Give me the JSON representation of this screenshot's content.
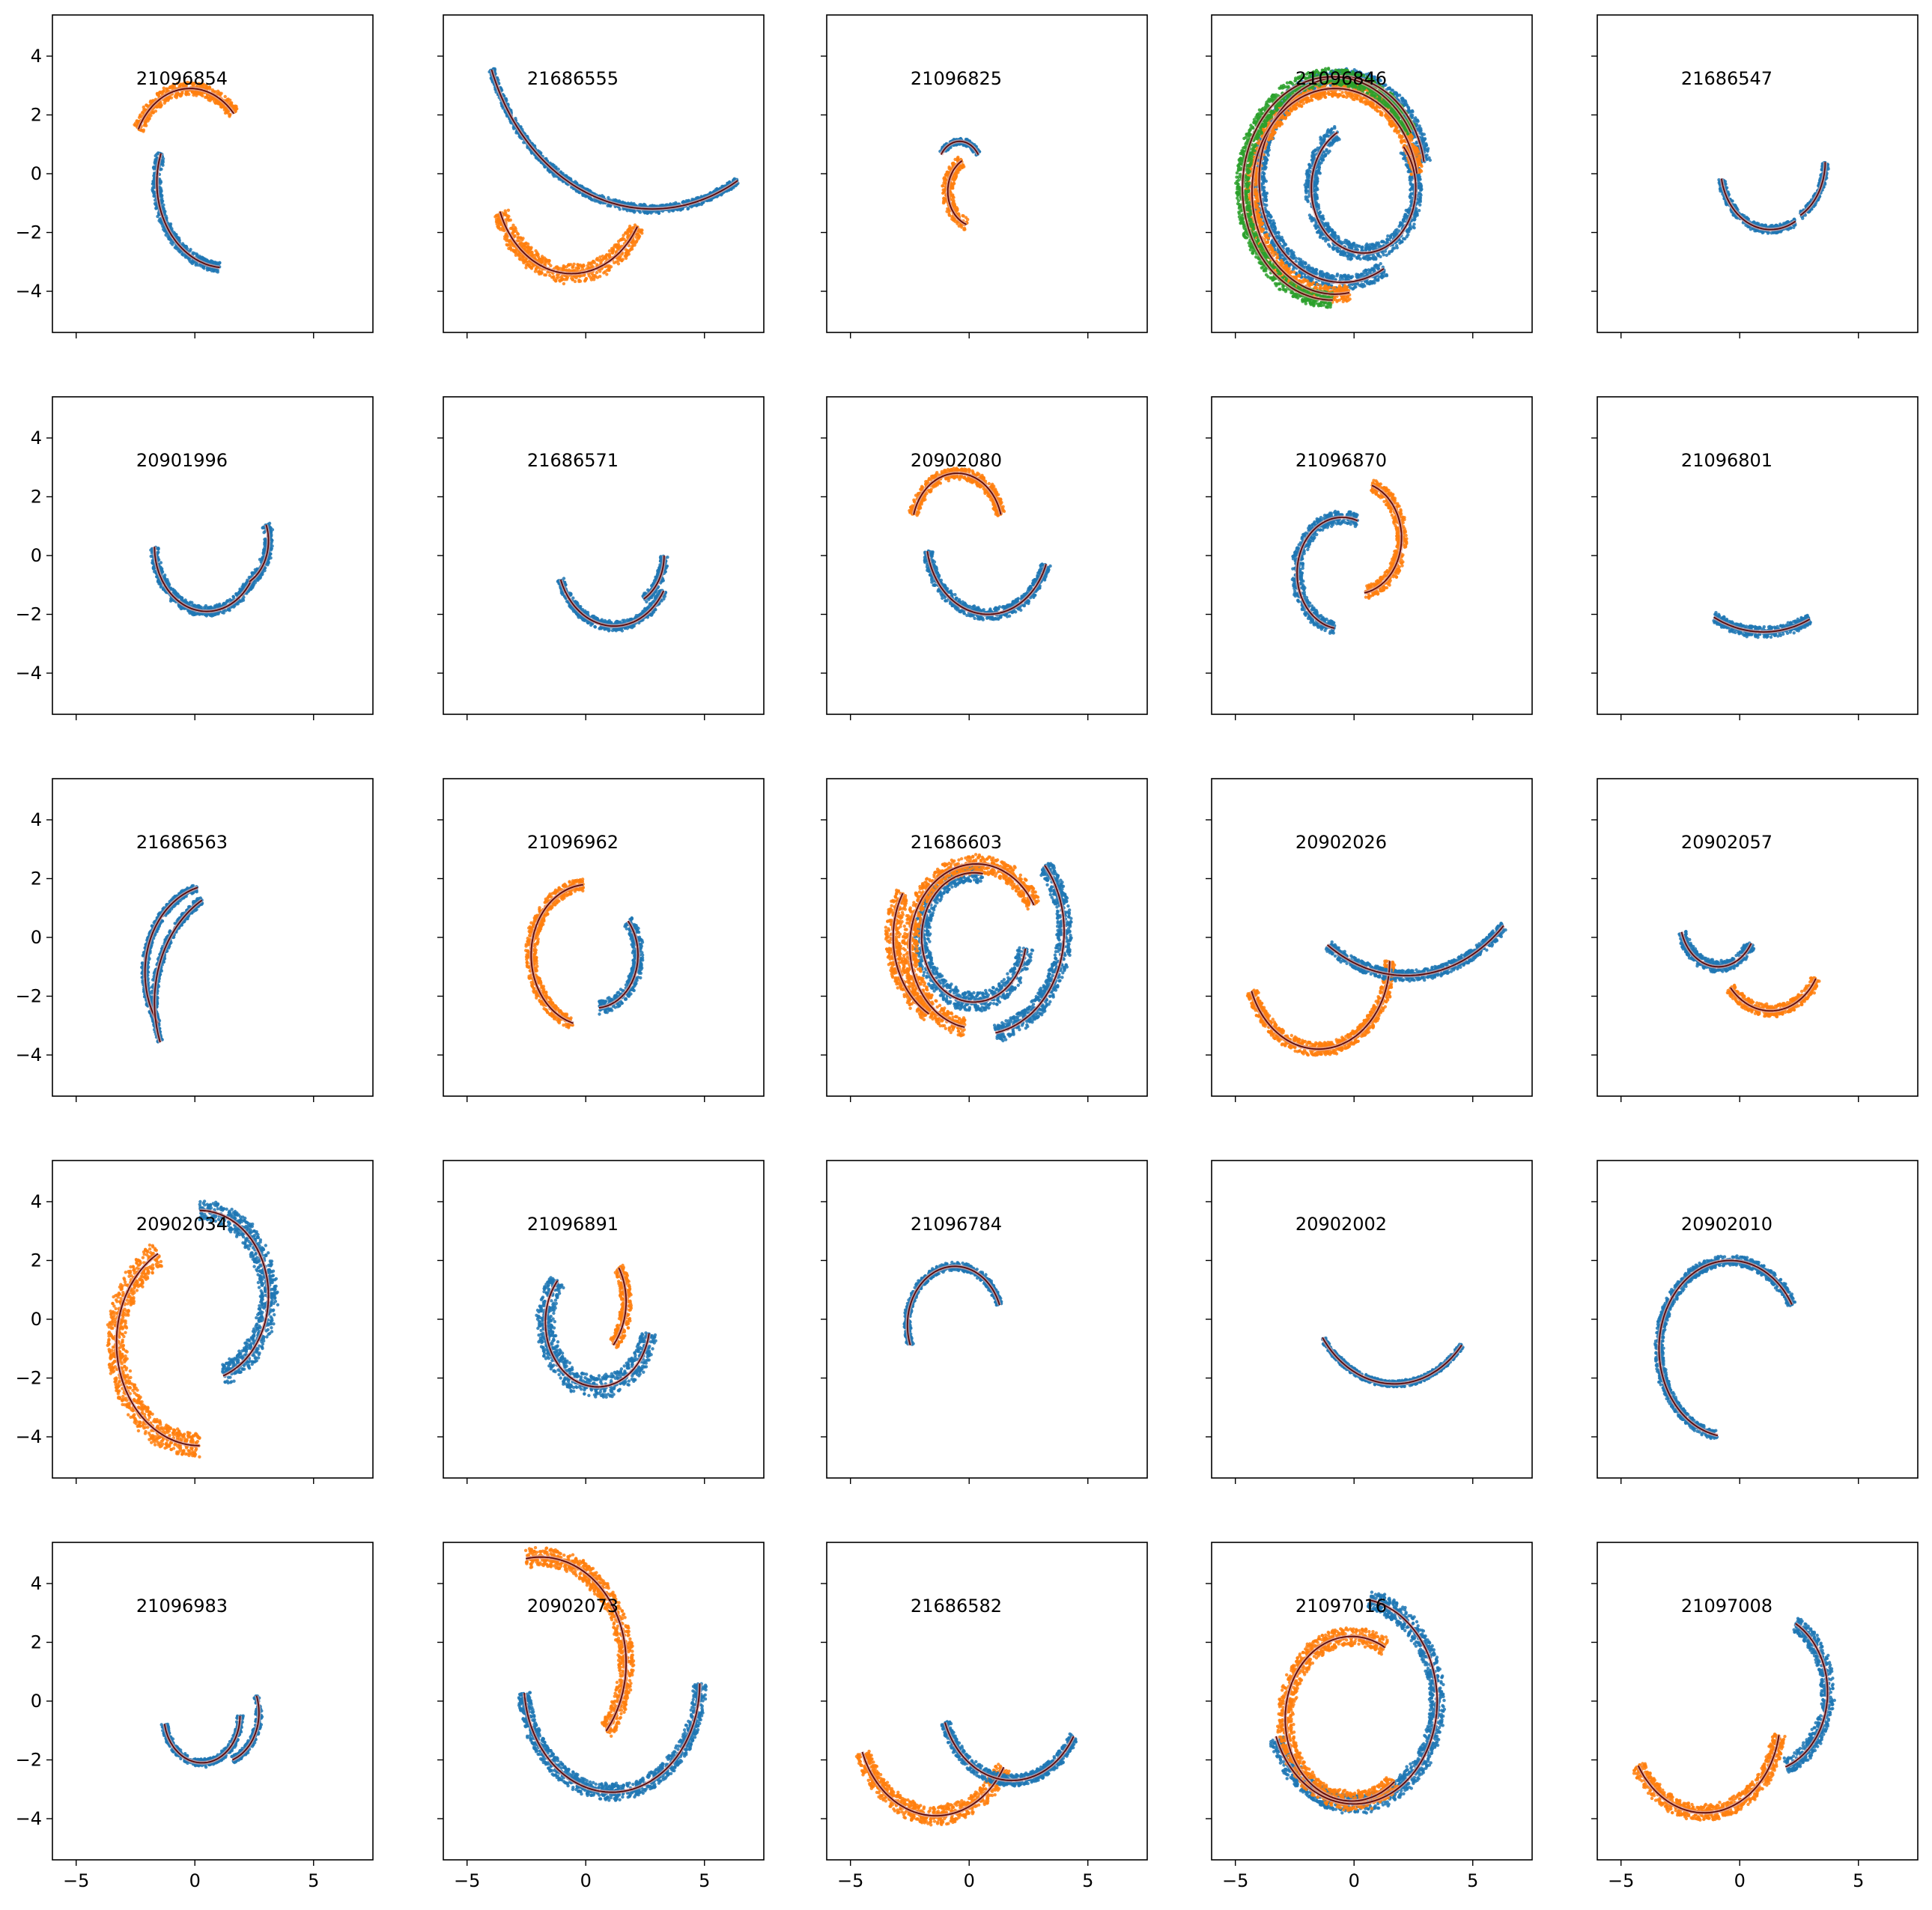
{
  "figure": {
    "layout": "5x5 grid of small-multiple scatter panels with shared axes",
    "colors": {
      "series1": "#1f77b4",
      "series2": "#ff7f0e",
      "series3": "#2ca02c",
      "fit": "#5c0a0a",
      "fit_band": "#d9a5a5"
    }
  },
  "chart_data": {
    "type": "scatter",
    "sharex": true,
    "sharey": true,
    "xlim": [
      -6.0,
      7.5
    ],
    "ylim": [
      -5.4,
      5.4
    ],
    "xticks": [
      -5,
      0,
      5
    ],
    "yticks": [
      -4,
      -2,
      0,
      2,
      4
    ],
    "xtick_labels": [
      "−5",
      "0",
      "5"
    ],
    "ytick_labels": [
      "−4",
      "−2",
      "0",
      "2",
      "4"
    ],
    "grid": false,
    "legend": "none",
    "panels": [
      {
        "title": "21096854",
        "arms": [
          {
            "s": 2,
            "cx": -0.2,
            "cy": 0.5,
            "r": 2.4,
            "a0": 155,
            "a1": 40,
            "t": 0.25
          },
          {
            "s": 1,
            "cx": 1.3,
            "cy": -0.3,
            "r": 2.9,
            "a0": 160,
            "a1": 265,
            "t": 0.2
          }
        ]
      },
      {
        "title": "21686555",
        "arms": [
          {
            "s": 2,
            "cx": -0.6,
            "cy": -0.2,
            "r": 3.2,
            "a0": 200,
            "a1": 330,
            "t": 0.35
          },
          {
            "s": 1,
            "cx": 2.8,
            "cy": 6.0,
            "r": 7.2,
            "a0": 200,
            "a1": 300,
            "t": 0.15
          }
        ]
      },
      {
        "title": "21096825",
        "arms": [
          {
            "s": 1,
            "cx": -0.4,
            "cy": 0.2,
            "r": 0.9,
            "a0": 150,
            "a1": 30,
            "t": 0.12
          },
          {
            "s": 2,
            "cx": 0.3,
            "cy": -0.6,
            "r": 1.2,
            "a0": 120,
            "a1": 250,
            "t": 0.25
          }
        ]
      },
      {
        "title": "21096846",
        "arms": [
          {
            "s": 1,
            "cx": 0.4,
            "cy": -0.5,
            "r": 2.2,
            "a0": 120,
            "a1": 400,
            "t": 0.3
          },
          {
            "s": 1,
            "cx": -0.5,
            "cy": -0.2,
            "r": 3.5,
            "a0": 10,
            "a1": 300,
            "t": 0.3
          },
          {
            "s": 2,
            "cx": -0.8,
            "cy": -0.6,
            "r": 3.5,
            "a0": 10,
            "a1": 280,
            "t": 0.3
          },
          {
            "s": 3,
            "cx": -0.9,
            "cy": -0.5,
            "r": 3.8,
            "a0": 30,
            "a1": 270,
            "t": 0.3
          }
        ]
      },
      {
        "title": "21686547",
        "arms": [
          {
            "s": 1,
            "cx": 1.3,
            "cy": 0.2,
            "r": 2.1,
            "a0": 190,
            "a1": 300,
            "t": 0.15
          },
          {
            "s": 1,
            "cx": 1.5,
            "cy": 0.4,
            "r": 2.1,
            "a0": 300,
            "a1": 360,
            "t": 0.15
          }
        ]
      },
      {
        "title": "20901996",
        "arms": [
          {
            "s": 1,
            "cx": 0.5,
            "cy": 0.3,
            "r": 2.2,
            "a0": 180,
            "a1": 330,
            "t": 0.2
          },
          {
            "s": 1,
            "cx": 1.5,
            "cy": 0.5,
            "r": 1.6,
            "a0": 300,
            "a1": 380,
            "t": 0.2
          }
        ]
      },
      {
        "title": "21686571",
        "arms": [
          {
            "s": 1,
            "cx": 1.2,
            "cy": 0.0,
            "r": 2.4,
            "a0": 200,
            "a1": 330,
            "t": 0.18
          },
          {
            "s": 1,
            "cx": 1.6,
            "cy": 0.0,
            "r": 1.7,
            "a0": 300,
            "a1": 360,
            "t": 0.18
          }
        ]
      },
      {
        "title": "20902080",
        "arms": [
          {
            "s": 2,
            "cx": -0.5,
            "cy": 0.9,
            "r": 1.9,
            "a0": 165,
            "a1": 15,
            "t": 0.22
          },
          {
            "s": 1,
            "cx": 0.8,
            "cy": 0.6,
            "r": 2.6,
            "a0": 190,
            "a1": 340,
            "t": 0.22
          }
        ]
      },
      {
        "title": "21096870",
        "arms": [
          {
            "s": 1,
            "cx": -0.5,
            "cy": -0.6,
            "r": 1.9,
            "a0": 70,
            "a1": 260,
            "t": 0.25
          },
          {
            "s": 2,
            "cx": 0.1,
            "cy": 0.6,
            "r": 1.9,
            "a0": 70,
            "a1": -80,
            "t": 0.25
          }
        ]
      },
      {
        "title": "21096801",
        "arms": [
          {
            "s": 1,
            "cx": 1.0,
            "cy": 2.0,
            "r": 4.6,
            "a0": 243,
            "a1": 295,
            "t": 0.2
          }
        ]
      },
      {
        "title": "21686563",
        "arms": [
          {
            "s": 1,
            "cx": 0.9,
            "cy": -1.2,
            "r": 3.0,
            "a0": 105,
            "a1": 215,
            "t": 0.15
          },
          {
            "s": 1,
            "cx": 2.3,
            "cy": -2.2,
            "r": 4.0,
            "a0": 120,
            "a1": 200,
            "t": 0.15
          }
        ]
      },
      {
        "title": "21096962",
        "arms": [
          {
            "s": 2,
            "cx": 0.1,
            "cy": -0.6,
            "r": 2.4,
            "a0": 95,
            "a1": 255,
            "t": 0.25
          },
          {
            "s": 1,
            "cx": 0.4,
            "cy": -0.6,
            "r": 1.8,
            "a0": 275,
            "a1": 400,
            "t": 0.25
          }
        ]
      },
      {
        "title": "21686603",
        "arms": [
          {
            "s": 1,
            "cx": 0.2,
            "cy": 0.0,
            "r": 2.2,
            "a0": 80,
            "a1": 350,
            "t": 0.35
          },
          {
            "s": 1,
            "cx": 0.5,
            "cy": 0.2,
            "r": 3.5,
            "a0": 280,
            "a1": 400,
            "t": 0.35
          },
          {
            "s": 2,
            "cx": 0.3,
            "cy": -0.3,
            "r": 2.8,
            "a0": 30,
            "a1": 260,
            "t": 0.35
          },
          {
            "s": 2,
            "cx": -0.2,
            "cy": 0.0,
            "r": 3.0,
            "a0": 150,
            "a1": 240,
            "t": 0.35
          }
        ]
      },
      {
        "title": "20902026",
        "arms": [
          {
            "s": 2,
            "cx": -1.5,
            "cy": -0.8,
            "r": 3.0,
            "a0": 200,
            "a1": 360,
            "t": 0.25
          },
          {
            "s": 1,
            "cx": 2.2,
            "cy": 4.5,
            "r": 5.8,
            "a0": 235,
            "a1": 315,
            "t": 0.2
          }
        ]
      },
      {
        "title": "20902057",
        "arms": [
          {
            "s": 1,
            "cx": -0.9,
            "cy": 0.6,
            "r": 1.6,
            "a0": 195,
            "a1": 330,
            "t": 0.22
          },
          {
            "s": 2,
            "cx": 1.3,
            "cy": -0.3,
            "r": 2.2,
            "a0": 220,
            "a1": 330,
            "t": 0.22
          }
        ]
      },
      {
        "title": "20902034",
        "arms": [
          {
            "s": 1,
            "cx": 0.2,
            "cy": 0.8,
            "r": 2.9,
            "a0": 90,
            "a1": -70,
            "t": 0.4
          },
          {
            "s": 2,
            "cx": 0.2,
            "cy": -0.8,
            "r": 3.5,
            "a0": 120,
            "a1": 270,
            "t": 0.45
          }
        ]
      },
      {
        "title": "21096891",
        "arms": [
          {
            "s": 1,
            "cx": 0.5,
            "cy": -0.1,
            "r": 2.2,
            "a0": 140,
            "a1": 350,
            "t": 0.4
          },
          {
            "s": 2,
            "cx": -0.6,
            "cy": 0.6,
            "r": 2.3,
            "a0": 30,
            "a1": -40,
            "t": 0.25
          }
        ]
      },
      {
        "title": "21096784",
        "arms": [
          {
            "s": 1,
            "cx": -0.6,
            "cy": -0.2,
            "r": 2.0,
            "a0": 200,
            "a1": 20,
            "t": 0.15
          }
        ]
      },
      {
        "title": "20902002",
        "arms": [
          {
            "s": 1,
            "cx": 1.7,
            "cy": 1.5,
            "r": 3.7,
            "a0": 215,
            "a1": 320,
            "t": 0.12
          }
        ]
      },
      {
        "title": "20902010",
        "arms": [
          {
            "s": 1,
            "cx": -0.4,
            "cy": -1.0,
            "r": 3.0,
            "a0": 30,
            "a1": 260,
            "t": 0.2
          }
        ]
      },
      {
        "title": "21096983",
        "arms": [
          {
            "s": 1,
            "cx": 0.3,
            "cy": -0.5,
            "r": 1.6,
            "a0": 190,
            "a1": 360,
            "t": 0.15
          },
          {
            "s": 1,
            "cx": 1.0,
            "cy": -0.4,
            "r": 1.7,
            "a0": 290,
            "a1": 380,
            "t": 0.15
          }
        ]
      },
      {
        "title": "20902073",
        "arms": [
          {
            "s": 2,
            "cx": -1.9,
            "cy": 1.3,
            "r": 3.6,
            "a0": 100,
            "a1": -40,
            "t": 0.35
          },
          {
            "s": 1,
            "cx": 1.1,
            "cy": 0.6,
            "r": 3.7,
            "a0": 185,
            "a1": 360,
            "t": 0.3
          }
        ]
      },
      {
        "title": "21686582",
        "arms": [
          {
            "s": 2,
            "cx": -1.4,
            "cy": -0.6,
            "r": 3.3,
            "a0": 200,
            "a1": 330,
            "t": 0.35
          },
          {
            "s": 1,
            "cx": 1.8,
            "cy": 0.3,
            "r": 3.0,
            "a0": 200,
            "a1": 330,
            "t": 0.22
          }
        ]
      },
      {
        "title": "21097016",
        "arms": [
          {
            "s": 1,
            "cx": 0.0,
            "cy": 0.0,
            "r": 3.5,
            "a0": 200,
            "a1": 440,
            "t": 0.35
          },
          {
            "s": 2,
            "cx": -0.1,
            "cy": -0.6,
            "r": 2.8,
            "a0": 60,
            "a1": 310,
            "t": 0.35
          }
        ]
      },
      {
        "title": "21097008",
        "arms": [
          {
            "s": 2,
            "cx": -1.5,
            "cy": -0.6,
            "r": 3.2,
            "a0": 210,
            "a1": 350,
            "t": 0.3
          },
          {
            "s": 1,
            "cx": 1.0,
            "cy": 0.3,
            "r": 2.7,
            "a0": 290,
            "a1": 420,
            "t": 0.3
          }
        ]
      }
    ]
  }
}
